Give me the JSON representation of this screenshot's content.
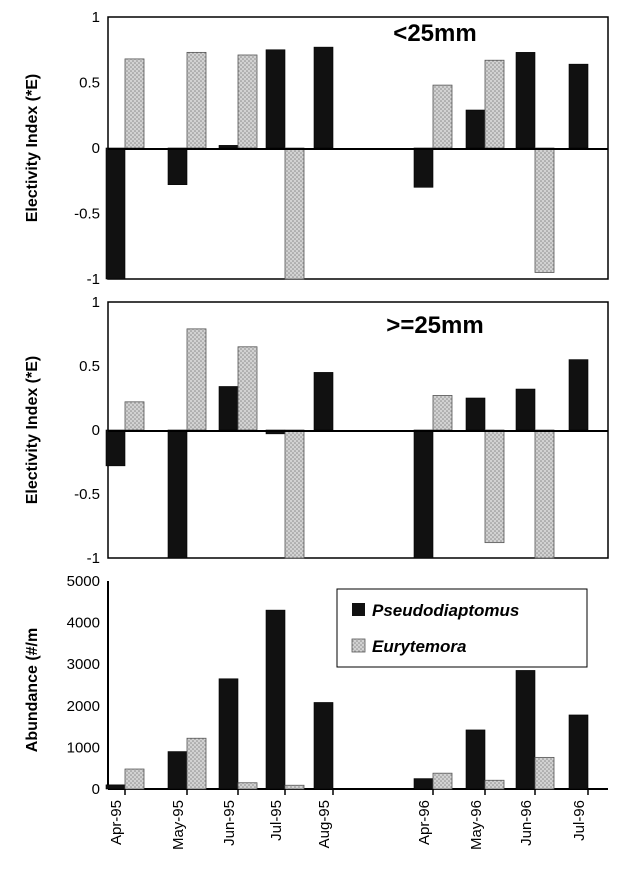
{
  "chart_data": [
    {
      "type": "bar",
      "title": "<25mm",
      "ylabel": "Electivity Index (*E)",
      "ylim": [
        -1,
        1
      ],
      "yticks": [
        "1",
        "0.5",
        "0",
        "-0.5",
        "-1"
      ],
      "categories": [
        "Apr-95",
        "May-95",
        "Jun-95",
        "Jul-95",
        "Aug-95",
        "",
        "",
        "Apr-96",
        "May-96",
        "Jun-96",
        "Jul-96"
      ],
      "series": [
        {
          "name": "Pseudodiaptomus",
          "color": "#111111",
          "values": [
            -1.0,
            -0.28,
            0.02,
            0.75,
            0.77,
            null,
            null,
            -0.3,
            0.29,
            0.73,
            0.64
          ]
        },
        {
          "name": "Eurytemora",
          "color": "#c8c8c8",
          "values": [
            0.68,
            0.73,
            0.71,
            -1.0,
            null,
            null,
            null,
            0.48,
            0.67,
            -0.95,
            null
          ]
        }
      ],
      "grid": false,
      "legend": "none"
    },
    {
      "type": "bar",
      "title": ">=25mm",
      "ylabel": "Electivity Index (*E)",
      "ylim": [
        -1,
        1
      ],
      "yticks": [
        "1",
        "0.5",
        "0",
        "-0.5",
        "-1"
      ],
      "categories": [
        "Apr-95",
        "May-95",
        "Jun-95",
        "Jul-95",
        "Aug-95",
        "",
        "",
        "Apr-96",
        "May-96",
        "Jun-96",
        "Jul-96"
      ],
      "series": [
        {
          "name": "Pseudodiaptomus",
          "color": "#111111",
          "values": [
            -0.28,
            -1.0,
            0.34,
            -0.03,
            0.45,
            null,
            null,
            -1.0,
            0.25,
            0.32,
            0.55
          ]
        },
        {
          "name": "Eurytemora",
          "color": "#c8c8c8",
          "values": [
            0.22,
            0.79,
            0.65,
            -1.0,
            null,
            null,
            null,
            0.27,
            -0.88,
            -1.0,
            null
          ]
        }
      ],
      "grid": false,
      "legend": "none"
    },
    {
      "type": "bar",
      "title": "",
      "ylabel": "Abundance (#/m",
      "ylim": [
        0,
        5000
      ],
      "yticks": [
        "5000",
        "4000",
        "3000",
        "2000",
        "1000",
        "0"
      ],
      "categories": [
        "Apr-95",
        "May-95",
        "Jun-95",
        "Jul-95",
        "Aug-95",
        "",
        "",
        "Apr-96",
        "May-96",
        "Jun-96",
        "Jul-96"
      ],
      "xtick_labels": [
        "Apr-95",
        "May-95",
        "Jun-95",
        "Jul-95",
        "Aug-95",
        "Apr-96",
        "May-96",
        "Jun-96",
        "Jul-96"
      ],
      "series": [
        {
          "name": "Pseudodiaptomus",
          "color": "#111111",
          "values": [
            100,
            900,
            2650,
            4300,
            2080,
            null,
            null,
            250,
            1420,
            2850,
            1780
          ]
        },
        {
          "name": "Eurytemora",
          "color": "#c8c8c8",
          "values": [
            480,
            1220,
            150,
            90,
            null,
            null,
            null,
            380,
            210,
            760,
            null
          ]
        }
      ],
      "grid": false,
      "legend": "top-right"
    }
  ]
}
